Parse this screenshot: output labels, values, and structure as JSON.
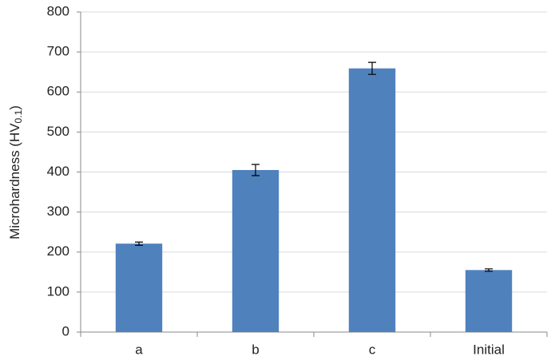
{
  "chart_data": {
    "type": "bar",
    "y_label": {
      "text": "Microhardness (HV",
      "subscript": "0.1",
      "suffix": ")"
    },
    "categories": [
      "a",
      "b",
      "c",
      "Initial"
    ],
    "values": [
      221,
      405,
      659,
      155
    ],
    "errors": [
      4,
      14,
      15,
      3
    ],
    "color": "#4f81bd",
    "ylim": [
      0,
      800
    ],
    "yticks": [
      0,
      100,
      200,
      300,
      400,
      500,
      600,
      700,
      800
    ],
    "grid": true
  }
}
